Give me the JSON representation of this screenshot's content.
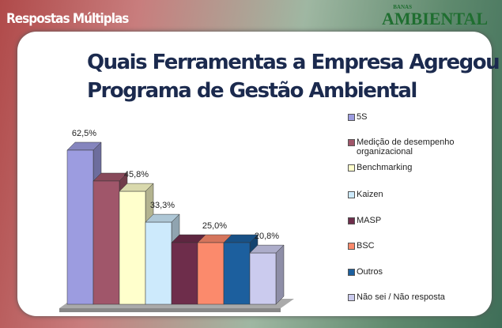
{
  "header": {
    "section": "Respostas Múltiplas",
    "logo_small": "BANAS",
    "logo": "AMBIENTAL"
  },
  "chart_data": {
    "type": "bar3d",
    "title_lines": [
      "Quais Ferramentas a Empresa Agregou ao",
      "Programa de Gestão Ambiental"
    ],
    "categories": [
      "5S",
      "Medição de desempenho organizacional",
      "Benchmarking",
      "Kaizen",
      "MASP",
      "BSC",
      "Outros",
      "Não sei / Não resposta"
    ],
    "values": [
      62.5,
      50,
      45.8,
      33.3,
      25,
      25,
      25,
      20.8
    ],
    "value_labels": [
      "62,5%",
      null,
      "45,8%",
      "33,3%",
      null,
      "25,0%",
      null,
      "20,8%"
    ],
    "colors": [
      "#9c9ce0",
      "#a0566a",
      "#ffffcc",
      "#cdeafc",
      "#6e2d4b",
      "#fb8a6c",
      "#1c5f9e",
      "#cbcbee"
    ],
    "legend": "right"
  }
}
